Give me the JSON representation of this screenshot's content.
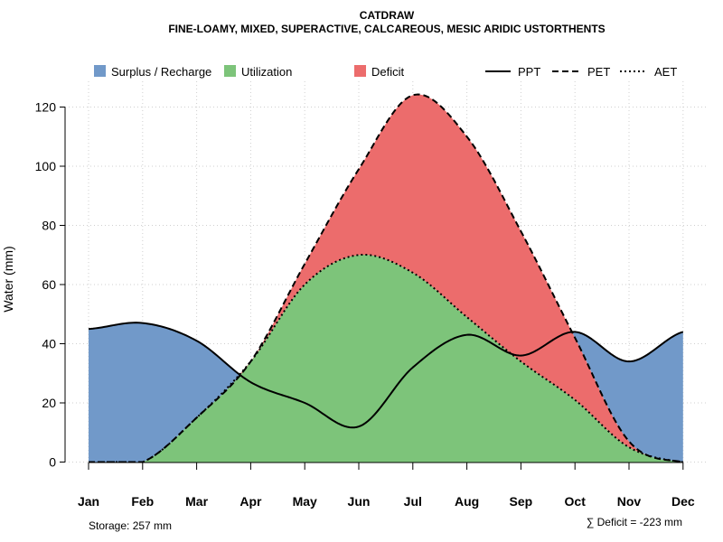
{
  "chart_data": {
    "type": "area",
    "title": "CATDRAW",
    "subtitle": "FINE-LOAMY, MIXED, SUPERACTIVE, CALCAREOUS, MESIC ARIDIC USTORTHENTS",
    "ylabel": "Water (mm)",
    "xlabel": "",
    "ylim": [
      0,
      128
    ],
    "yticks": [
      0,
      20,
      40,
      60,
      80,
      100,
      120
    ],
    "grid": true,
    "categories": [
      "Jan",
      "Feb",
      "Mar",
      "Apr",
      "May",
      "Jun",
      "Jul",
      "Aug",
      "Sep",
      "Oct",
      "Nov",
      "Dec"
    ],
    "series": [
      {
        "name": "PPT",
        "style": "solid",
        "values": [
          45,
          47,
          41,
          27,
          20,
          12,
          32,
          43,
          36,
          44,
          34,
          44
        ]
      },
      {
        "name": "PET",
        "style": "dashed",
        "values": [
          0,
          0,
          15,
          34,
          67,
          99,
          124,
          110,
          78,
          42,
          7,
          0
        ]
      },
      {
        "name": "AET",
        "style": "dotted",
        "values": [
          0,
          0,
          15,
          34,
          60,
          70,
          64,
          49,
          34,
          21,
          5,
          0
        ]
      }
    ],
    "areas": [
      {
        "name": "Surplus / Recharge",
        "color": "#7199c9"
      },
      {
        "name": "Utilization",
        "color": "#7dc47a"
      },
      {
        "name": "Deficit",
        "color": "#ec6c6c"
      }
    ],
    "legend_position": "top",
    "annotations": {
      "storage": "Storage: 257 mm",
      "deficit": "∑ Deficit = -223 mm"
    }
  }
}
